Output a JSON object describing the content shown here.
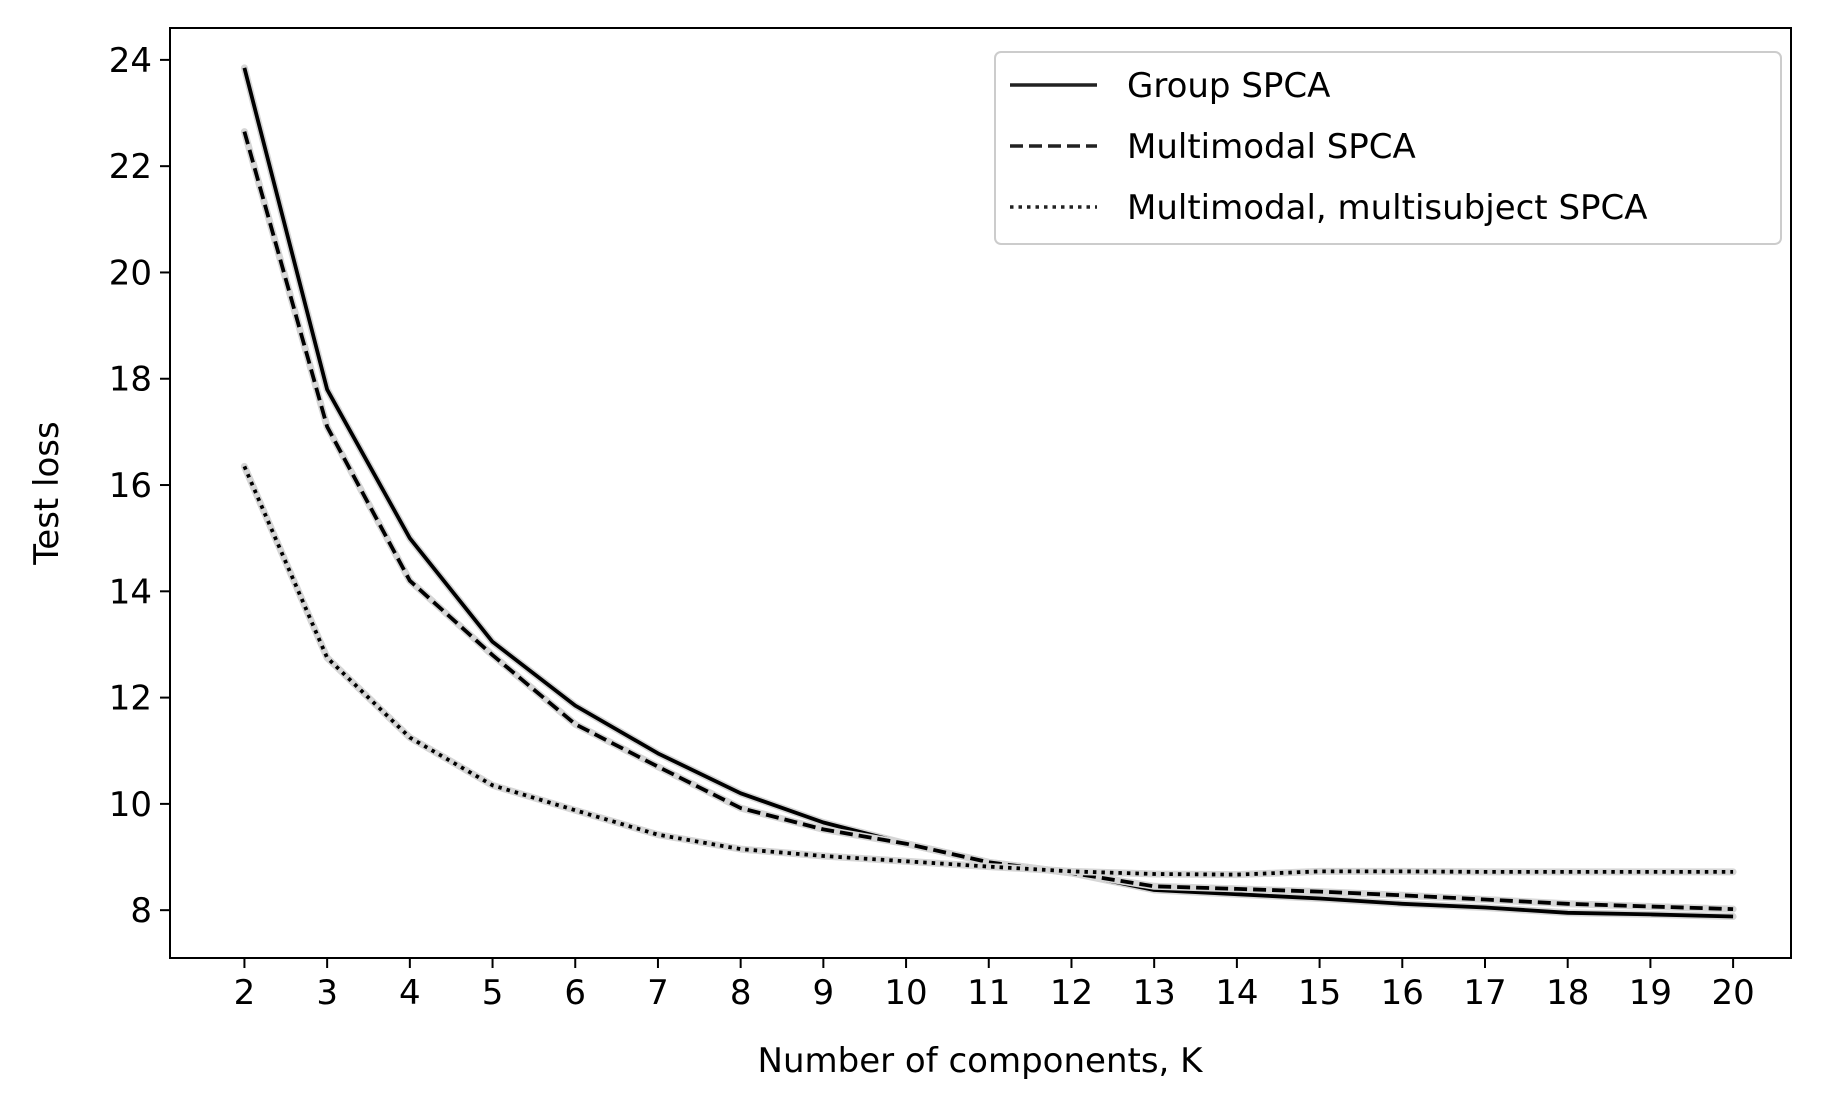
{
  "chart_data": {
    "type": "line",
    "title": "",
    "xlabel": "Number of components, K",
    "ylabel": "Test loss",
    "x": [
      2,
      3,
      4,
      5,
      6,
      7,
      8,
      9,
      10,
      11,
      12,
      13,
      14,
      15,
      16,
      17,
      18,
      19,
      20
    ],
    "xticks": [
      2,
      3,
      4,
      5,
      6,
      7,
      8,
      9,
      10,
      11,
      12,
      13,
      14,
      15,
      16,
      17,
      18,
      19,
      20
    ],
    "yticks": [
      8,
      10,
      12,
      14,
      16,
      18,
      20,
      22,
      24
    ],
    "xlim": [
      1.1,
      20.7
    ],
    "ylim": [
      7.1,
      24.6
    ],
    "grid": false,
    "legend_position": "top-right",
    "series": [
      {
        "name": "Group SPCA",
        "style": "solid",
        "color": "#000000",
        "values": [
          23.85,
          17.8,
          15.0,
          13.05,
          11.85,
          10.95,
          10.2,
          9.65,
          9.25,
          8.9,
          8.7,
          8.38,
          8.3,
          8.22,
          8.12,
          8.05,
          7.95,
          7.92,
          7.88
        ]
      },
      {
        "name": "Multimodal SPCA",
        "style": "dashed",
        "color": "#000000",
        "values": [
          22.65,
          17.1,
          14.2,
          12.8,
          11.5,
          10.7,
          9.92,
          9.52,
          9.25,
          8.9,
          8.7,
          8.45,
          8.4,
          8.35,
          8.28,
          8.2,
          8.12,
          8.07,
          8.02
        ]
      },
      {
        "name": "Multimodal, multisubject SPCA",
        "style": "dotted",
        "color": "#000000",
        "values": [
          16.35,
          12.75,
          11.25,
          10.35,
          9.88,
          9.42,
          9.15,
          9.02,
          8.92,
          8.82,
          8.73,
          8.68,
          8.67,
          8.73,
          8.73,
          8.72,
          8.72,
          8.72,
          8.72
        ]
      }
    ]
  }
}
